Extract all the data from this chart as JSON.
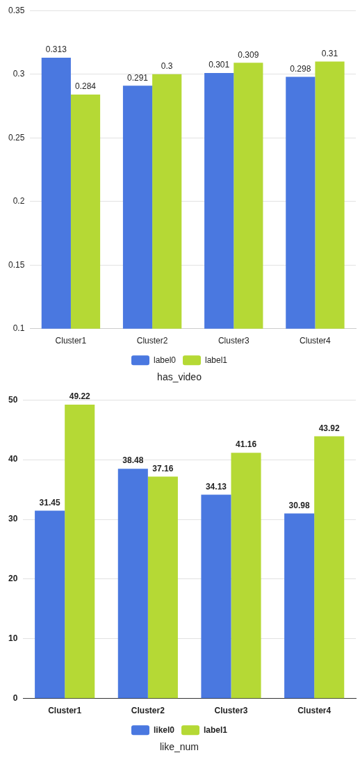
{
  "chart_data": [
    {
      "type": "bar",
      "title": "has_video",
      "categories": [
        "Cluster1",
        "Cluster2",
        "Cluster3",
        "Cluster4"
      ],
      "series": [
        {
          "name": "label0",
          "color": "#4a78e0",
          "values": [
            0.313,
            0.291,
            0.301,
            0.298
          ]
        },
        {
          "name": "label1",
          "color": "#b5d935",
          "values": [
            0.284,
            0.3,
            0.309,
            0.31
          ]
        }
      ],
      "ylim": [
        0.1,
        0.35
      ],
      "yticks": [
        0.1,
        0.15,
        0.2,
        0.25,
        0.3,
        0.35
      ],
      "grid": "y",
      "legend": "bottom",
      "data_labels": true
    },
    {
      "type": "bar",
      "title": "like_num",
      "categories": [
        "Cluster1",
        "Cluster2",
        "Cluster3",
        "Cluster4"
      ],
      "series": [
        {
          "name": "likel0",
          "color": "#4a78e0",
          "values": [
            31.45,
            38.48,
            34.13,
            30.98
          ]
        },
        {
          "name": "label1",
          "color": "#b5d935",
          "values": [
            49.22,
            37.16,
            41.16,
            43.92
          ]
        }
      ],
      "ylim": [
        0,
        50
      ],
      "yticks": [
        0,
        10,
        20,
        30,
        40,
        50
      ],
      "grid": "y",
      "legend": "bottom",
      "data_labels": true
    }
  ]
}
